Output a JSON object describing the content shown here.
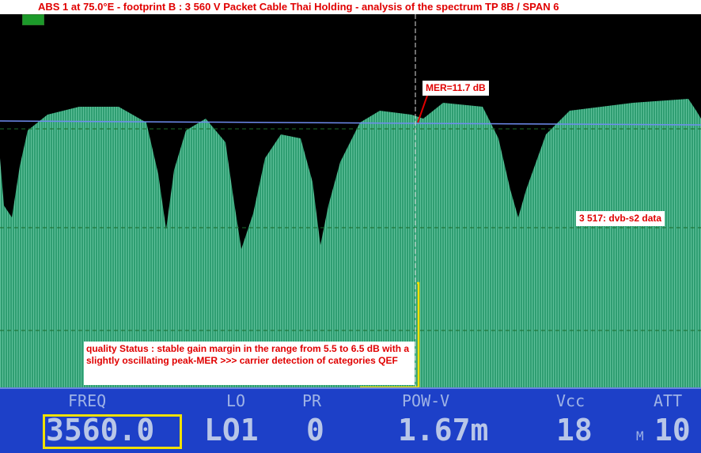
{
  "title": "ABS 1 at 75.0°E - footprint B : 3 560 V Packet Cable Thai Holding - analysis of the spectrum TP 8B / SPAN 6",
  "annotations": {
    "mer": "MER=11.7 dB",
    "carrier": "3 517: dvb-s2 data",
    "quality": "quality Status : stable gain margin in the range from 5.5 to 6.5 dB with a   slightly oscillating peak-MER >>> carrier detection of   categories QEF"
  },
  "status_bar": {
    "freq": {
      "label": "FREQ",
      "value": "3560.0"
    },
    "lo": {
      "label": "LO",
      "value": "LO1"
    },
    "pr": {
      "label": "PR",
      "value": "0"
    },
    "pow": {
      "label": "POW-V",
      "value": "1.67m"
    },
    "vcc": {
      "label": "Vcc",
      "value": "18"
    },
    "att": {
      "label": "ATT",
      "prefix": "M",
      "value": "10"
    }
  },
  "colors": {
    "spectrum": "#2f9e72",
    "annotation_text": "#e00000",
    "status_bar": "#1d40c8",
    "highlight": "#f0e000"
  }
}
